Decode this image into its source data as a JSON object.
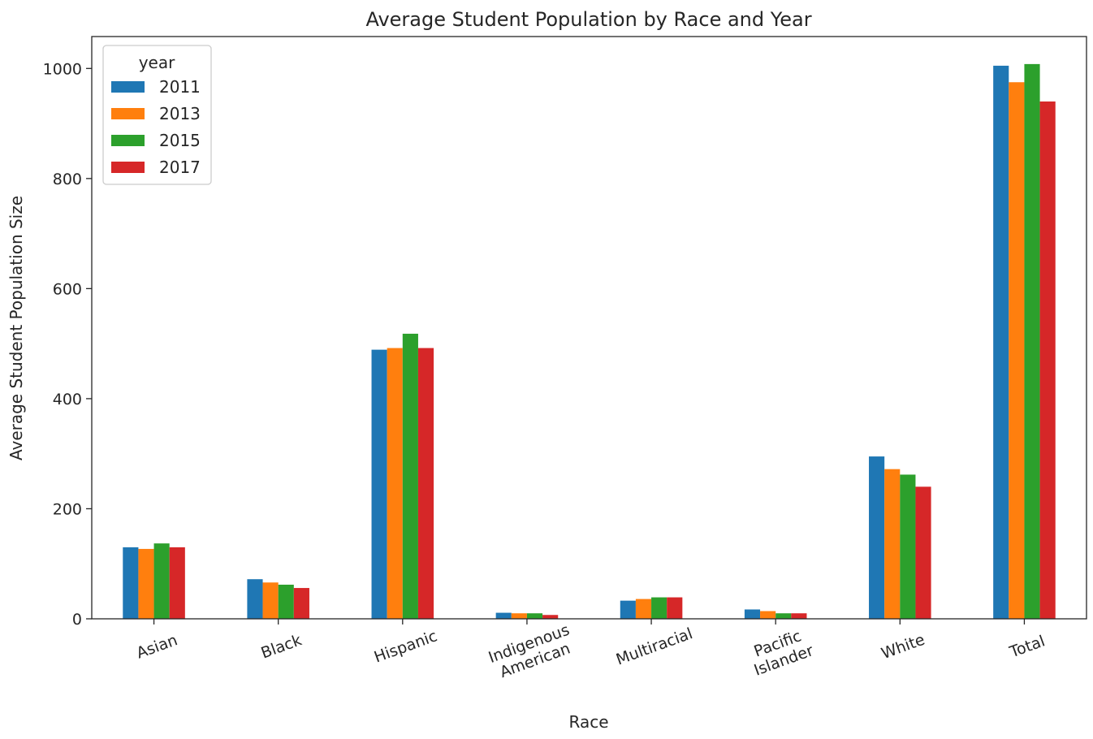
{
  "chart_data": {
    "type": "bar",
    "title": "Average Student Population by Race and Year",
    "xlabel": "Race",
    "ylabel": "Average Student Population Size",
    "categories": [
      [
        "Asian"
      ],
      [
        "Black"
      ],
      [
        "Hispanic"
      ],
      [
        "Indigenous",
        "American"
      ],
      [
        "Multiracial"
      ],
      [
        "Pacific",
        "Islander"
      ],
      [
        "White"
      ],
      [
        "Total"
      ]
    ],
    "series": [
      {
        "name": "2011",
        "color": "#1f77b4",
        "values": [
          130,
          72,
          489,
          11,
          33,
          17,
          295,
          1005
        ]
      },
      {
        "name": "2013",
        "color": "#ff7f0e",
        "values": [
          127,
          66,
          492,
          10,
          36,
          14,
          272,
          975
        ]
      },
      {
        "name": "2015",
        "color": "#2ca02c",
        "values": [
          137,
          62,
          518,
          10,
          39,
          10,
          262,
          1008
        ]
      },
      {
        "name": "2017",
        "color": "#d62728",
        "values": [
          130,
          56,
          492,
          7,
          39,
          10,
          240,
          940
        ]
      }
    ],
    "ylim": [
      0,
      1058
    ],
    "yticks": [
      0,
      200,
      400,
      600,
      800,
      1000
    ],
    "legend": {
      "title": "year",
      "position": "top-left"
    },
    "grid": false
  }
}
